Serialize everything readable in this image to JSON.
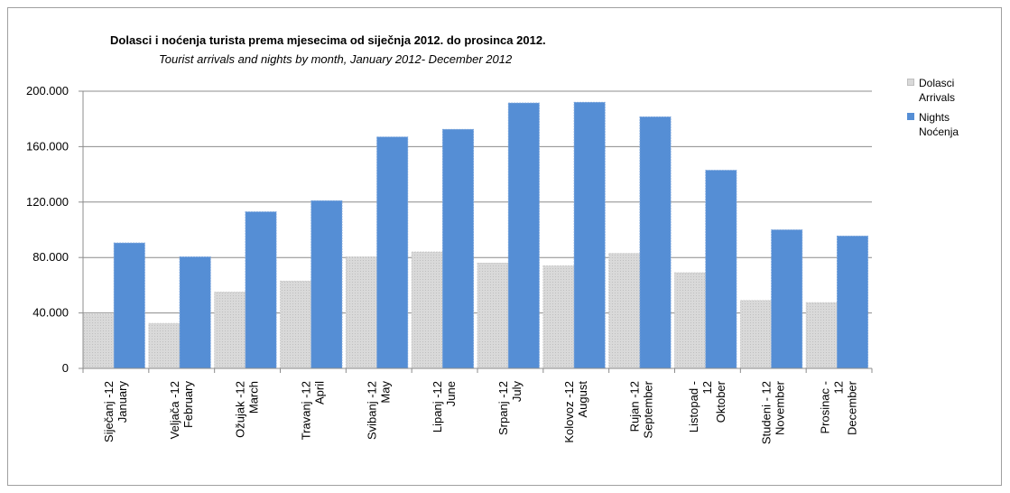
{
  "chart_data": {
    "type": "bar",
    "title": "Dolasci i noćenja turista prema mjesecima od siječnja 2012.  do  prosinca  2012.",
    "subtitle": "Tourist arrivals and nights by month,  January 2012- December 2012",
    "categories": [
      [
        "Siječanj -12",
        "January"
      ],
      [
        "Veljača  -12",
        "February"
      ],
      [
        "Ožujak  -12",
        "March"
      ],
      [
        "Travanj -12",
        "April"
      ],
      [
        "Svibanj  -12",
        "May"
      ],
      [
        "Lipanj -12",
        "June"
      ],
      [
        "Srpanj -12",
        "July"
      ],
      [
        "Kolovoz  -12",
        "August"
      ],
      [
        "Rujan  -12",
        "September"
      ],
      [
        "Listopad -",
        "12",
        "Oktober"
      ],
      [
        "Studeni  - 12",
        "November"
      ],
      [
        "Prosinac -",
        "12",
        "December"
      ]
    ],
    "series": [
      {
        "name": "Dolasci Arrivals",
        "legend_lines": [
          "Dolasci",
          "Arrivals"
        ],
        "color": "#d9d9d9",
        "values": [
          39000,
          32500,
          55000,
          63000,
          80500,
          84000,
          76000,
          74000,
          83000,
          69000,
          49000,
          47500
        ]
      },
      {
        "name": "Nights Noćenja",
        "legend_lines": [
          "Nights",
          "Noćenja"
        ],
        "color": "#558ed5",
        "values": [
          90500,
          80500,
          113000,
          121000,
          167000,
          172500,
          191500,
          192000,
          181500,
          143000,
          100000,
          95500
        ]
      }
    ],
    "y_ticks": [
      0,
      40000,
      80000,
      120000,
      160000,
      200000
    ],
    "y_tick_labels": [
      "0",
      "40.000",
      "80.000",
      "120.000",
      "160.000",
      "200.000"
    ],
    "ylim": [
      0,
      200000
    ],
    "grid": true,
    "legend_position": "right"
  }
}
